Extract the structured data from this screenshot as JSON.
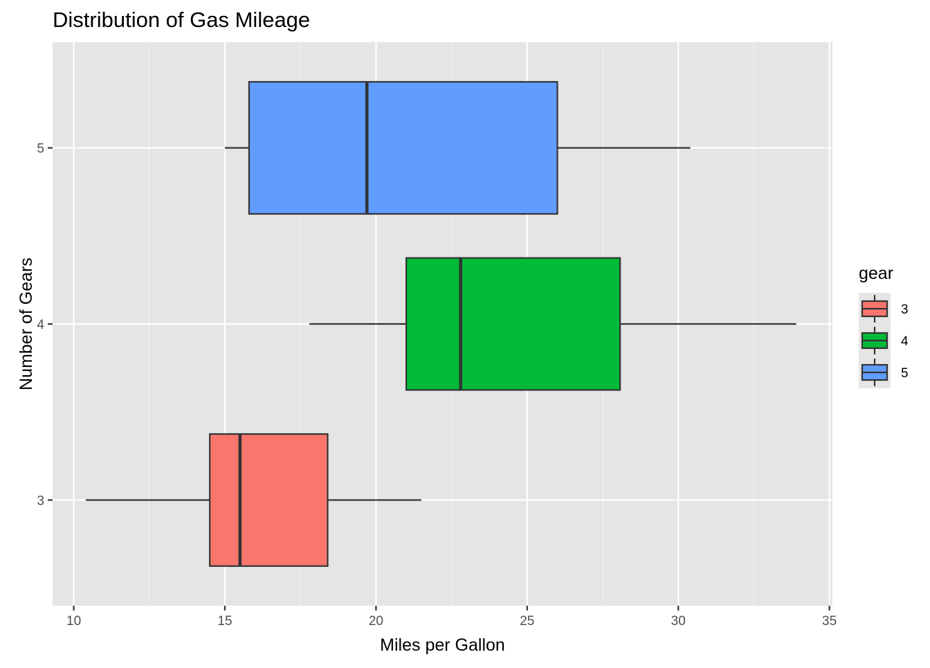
{
  "chart_data": {
    "type": "boxplot",
    "orientation": "horizontal",
    "title": "Distribution of Gas Mileage",
    "xlabel": "Miles per Gallon",
    "ylabel": "Number of Gears",
    "xlim": [
      9.3,
      35.1
    ],
    "x_ticks": [
      10,
      15,
      20,
      25,
      30,
      35
    ],
    "categories": [
      "3",
      "4",
      "5"
    ],
    "grid": true,
    "legend": {
      "title": "gear",
      "position": "right",
      "entries": [
        "3",
        "4",
        "5"
      ]
    },
    "series": [
      {
        "name": "3",
        "color": "#F8766D",
        "min": 10.4,
        "q1": 14.5,
        "median": 15.5,
        "q3": 18.4,
        "max": 21.5
      },
      {
        "name": "4",
        "color": "#00BA38",
        "min": 17.8,
        "q1": 21.0,
        "median": 22.8,
        "q3": 28.075,
        "max": 33.9
      },
      {
        "name": "5",
        "color": "#619CFF",
        "min": 15.0,
        "q1": 15.8,
        "median": 19.7,
        "q3": 26.0,
        "max": 30.4
      }
    ]
  },
  "colors": {
    "panel_background": "#E5E5E5",
    "grid_major": "#FFFFFF",
    "grid_minor": "#F2F2F2",
    "box_outline": "#333333"
  }
}
